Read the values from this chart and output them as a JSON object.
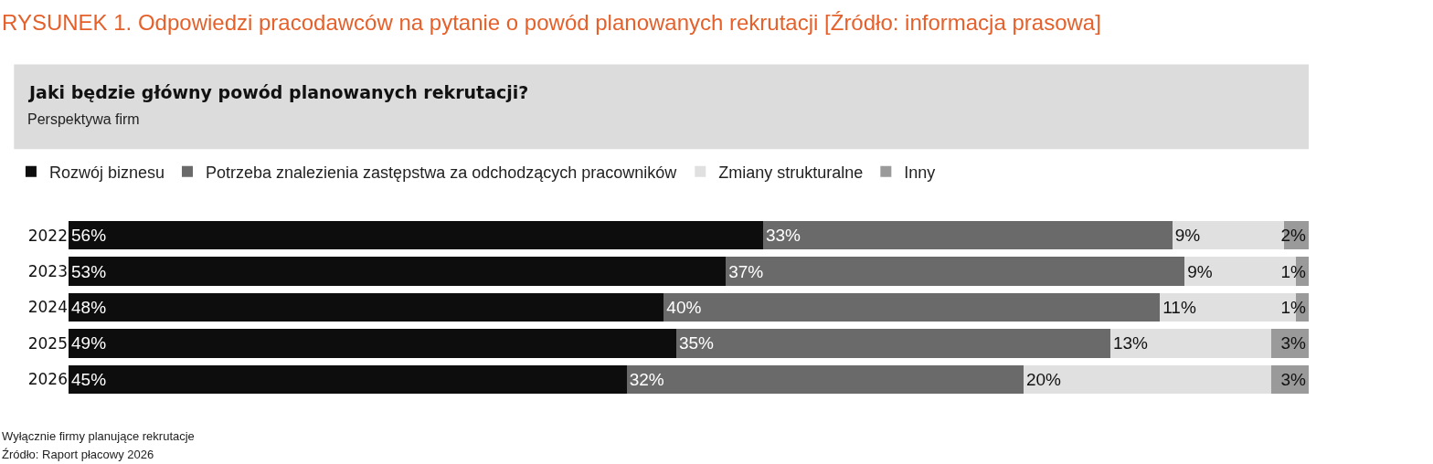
{
  "chart_data": {
    "type": "bar",
    "orientation": "horizontal",
    "stacked": true,
    "title": "RYSUNEK 1. Odpowiedzi pracodawców na pytanie o powód planowanych rekrutacji [Źródło: informacja prasowa]",
    "subtitle": "Jaki będzie główny powód planowanych rekrutacji?",
    "annotations": [
      "Perspektywa firm",
      "Wyłącznie firmy planujące rekrutacje",
      "Źródło: Raport płacowy 2026"
    ],
    "categories": [
      "2022",
      "2023",
      "2024",
      "2025",
      "2026"
    ],
    "series": [
      {
        "name": "Rozwój biznesu",
        "color": "#0d0d0d",
        "values": [
          56,
          53,
          48,
          49,
          45
        ],
        "value_labels": [
          "56%",
          "53%",
          "48%",
          "49%",
          "45%"
        ]
      },
      {
        "name": "Potrzeba znalezienia zastępstwa za odchodzących pracowników",
        "color": "#6a6a6a",
        "values": [
          33,
          37,
          40,
          35,
          32
        ],
        "value_labels": [
          "33%",
          "37%",
          "40%",
          "35%",
          "32%"
        ]
      },
      {
        "name": "Zmiany strukturalne",
        "color": "#e0e0e0",
        "values": [
          9,
          9,
          11,
          13,
          20
        ],
        "value_labels": [
          "9%",
          "9%",
          "11%",
          "13%",
          "20%"
        ]
      },
      {
        "name": "Inny",
        "color": "#9a9a9a",
        "values": [
          2,
          1,
          1,
          3,
          3
        ],
        "value_labels": [
          "2%",
          "1%",
          "1%",
          "3%",
          "3%"
        ]
      }
    ],
    "legend": "top left",
    "tick_labels": "y"
  }
}
